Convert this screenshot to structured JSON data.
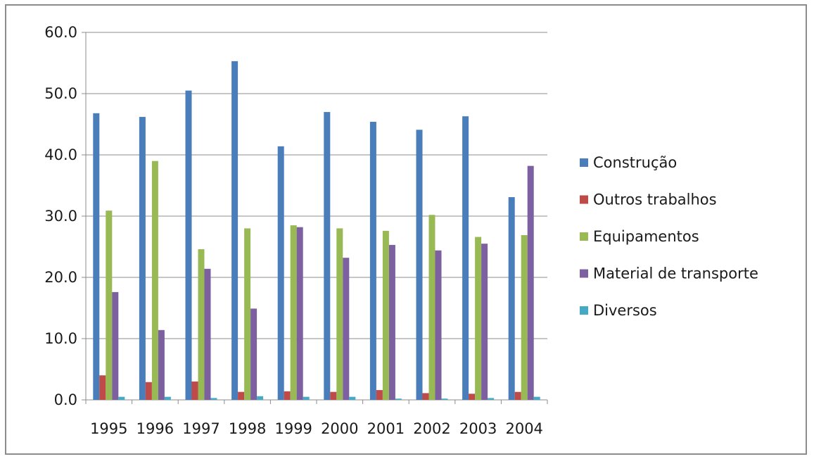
{
  "chart_data": {
    "type": "bar",
    "categories": [
      "1995",
      "1996",
      "1997",
      "1998",
      "1999",
      "2000",
      "2001",
      "2002",
      "2003",
      "2004"
    ],
    "series": [
      {
        "name": "Construção",
        "color": "#4a7ebb",
        "values": [
          46.8,
          46.2,
          50.5,
          55.3,
          41.4,
          47.0,
          45.4,
          44.1,
          46.3,
          33.1
        ]
      },
      {
        "name": "Outros trabalhos",
        "color": "#be4b48",
        "values": [
          4.0,
          2.9,
          3.0,
          1.3,
          1.4,
          1.3,
          1.6,
          1.1,
          1.0,
          1.3
        ]
      },
      {
        "name": "Equipamentos",
        "color": "#98b954",
        "values": [
          30.9,
          39.0,
          24.6,
          28.0,
          28.5,
          28.0,
          27.6,
          30.2,
          26.6,
          26.9
        ]
      },
      {
        "name": "Material de transporte",
        "color": "#7d60a0",
        "values": [
          17.6,
          11.4,
          21.4,
          14.9,
          28.2,
          23.2,
          25.3,
          24.4,
          25.5,
          38.2
        ]
      },
      {
        "name": "Diversos",
        "color": "#46aac5",
        "values": [
          0.5,
          0.5,
          0.3,
          0.6,
          0.5,
          0.5,
          0.2,
          0.2,
          0.3,
          0.5
        ]
      }
    ],
    "ylim": [
      0,
      60
    ],
    "yticks": [
      "0.0",
      "10.0",
      "20.0",
      "30.0",
      "40.0",
      "50.0",
      "60.0"
    ],
    "title": "",
    "xlabel": "",
    "ylabel": "",
    "grid": true,
    "legend_position": "right"
  }
}
